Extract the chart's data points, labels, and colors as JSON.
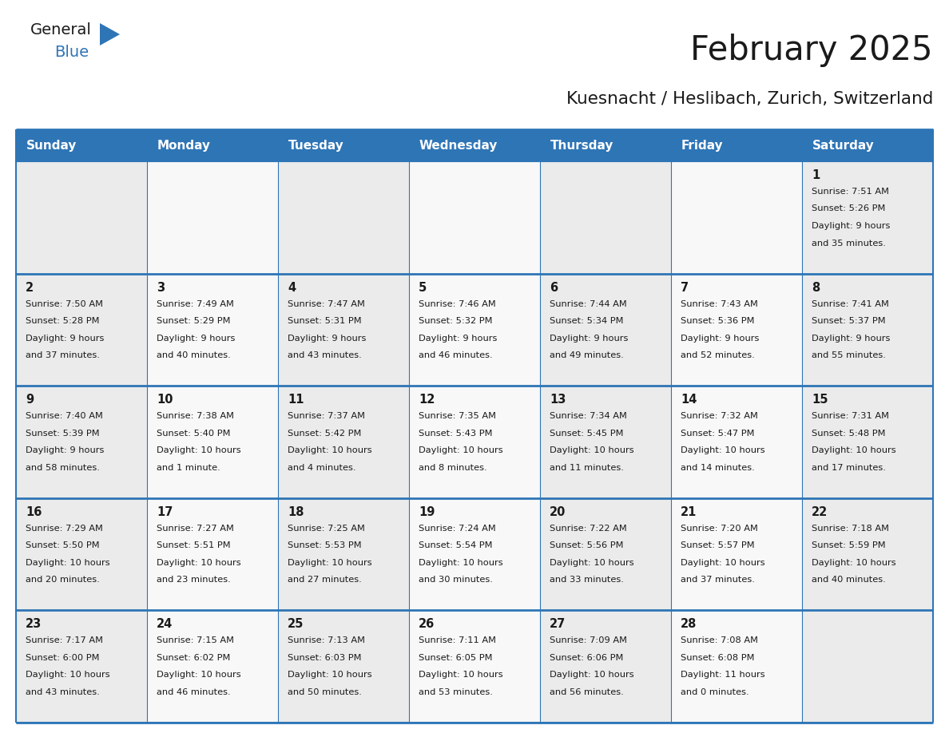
{
  "title": "February 2025",
  "subtitle": "Kuesnacht / Heslibach, Zurich, Switzerland",
  "header_bg_color": "#2E75B6",
  "header_text_color": "#FFFFFF",
  "cell_bg_even": "#EBEBEB",
  "cell_bg_odd": "#F8F8F8",
  "day_number_color": "#1a1a1a",
  "text_color": "#1a1a1a",
  "border_color": "#2E75B6",
  "week_divider_color": "#2E75B6",
  "days_of_week": [
    "Sunday",
    "Monday",
    "Tuesday",
    "Wednesday",
    "Thursday",
    "Friday",
    "Saturday"
  ],
  "weeks": [
    [
      {
        "day": null,
        "info": null
      },
      {
        "day": null,
        "info": null
      },
      {
        "day": null,
        "info": null
      },
      {
        "day": null,
        "info": null
      },
      {
        "day": null,
        "info": null
      },
      {
        "day": null,
        "info": null
      },
      {
        "day": "1",
        "info": "Sunrise: 7:51 AM\nSunset: 5:26 PM\nDaylight: 9 hours\nand 35 minutes."
      }
    ],
    [
      {
        "day": "2",
        "info": "Sunrise: 7:50 AM\nSunset: 5:28 PM\nDaylight: 9 hours\nand 37 minutes."
      },
      {
        "day": "3",
        "info": "Sunrise: 7:49 AM\nSunset: 5:29 PM\nDaylight: 9 hours\nand 40 minutes."
      },
      {
        "day": "4",
        "info": "Sunrise: 7:47 AM\nSunset: 5:31 PM\nDaylight: 9 hours\nand 43 minutes."
      },
      {
        "day": "5",
        "info": "Sunrise: 7:46 AM\nSunset: 5:32 PM\nDaylight: 9 hours\nand 46 minutes."
      },
      {
        "day": "6",
        "info": "Sunrise: 7:44 AM\nSunset: 5:34 PM\nDaylight: 9 hours\nand 49 minutes."
      },
      {
        "day": "7",
        "info": "Sunrise: 7:43 AM\nSunset: 5:36 PM\nDaylight: 9 hours\nand 52 minutes."
      },
      {
        "day": "8",
        "info": "Sunrise: 7:41 AM\nSunset: 5:37 PM\nDaylight: 9 hours\nand 55 minutes."
      }
    ],
    [
      {
        "day": "9",
        "info": "Sunrise: 7:40 AM\nSunset: 5:39 PM\nDaylight: 9 hours\nand 58 minutes."
      },
      {
        "day": "10",
        "info": "Sunrise: 7:38 AM\nSunset: 5:40 PM\nDaylight: 10 hours\nand 1 minute."
      },
      {
        "day": "11",
        "info": "Sunrise: 7:37 AM\nSunset: 5:42 PM\nDaylight: 10 hours\nand 4 minutes."
      },
      {
        "day": "12",
        "info": "Sunrise: 7:35 AM\nSunset: 5:43 PM\nDaylight: 10 hours\nand 8 minutes."
      },
      {
        "day": "13",
        "info": "Sunrise: 7:34 AM\nSunset: 5:45 PM\nDaylight: 10 hours\nand 11 minutes."
      },
      {
        "day": "14",
        "info": "Sunrise: 7:32 AM\nSunset: 5:47 PM\nDaylight: 10 hours\nand 14 minutes."
      },
      {
        "day": "15",
        "info": "Sunrise: 7:31 AM\nSunset: 5:48 PM\nDaylight: 10 hours\nand 17 minutes."
      }
    ],
    [
      {
        "day": "16",
        "info": "Sunrise: 7:29 AM\nSunset: 5:50 PM\nDaylight: 10 hours\nand 20 minutes."
      },
      {
        "day": "17",
        "info": "Sunrise: 7:27 AM\nSunset: 5:51 PM\nDaylight: 10 hours\nand 23 minutes."
      },
      {
        "day": "18",
        "info": "Sunrise: 7:25 AM\nSunset: 5:53 PM\nDaylight: 10 hours\nand 27 minutes."
      },
      {
        "day": "19",
        "info": "Sunrise: 7:24 AM\nSunset: 5:54 PM\nDaylight: 10 hours\nand 30 minutes."
      },
      {
        "day": "20",
        "info": "Sunrise: 7:22 AM\nSunset: 5:56 PM\nDaylight: 10 hours\nand 33 minutes."
      },
      {
        "day": "21",
        "info": "Sunrise: 7:20 AM\nSunset: 5:57 PM\nDaylight: 10 hours\nand 37 minutes."
      },
      {
        "day": "22",
        "info": "Sunrise: 7:18 AM\nSunset: 5:59 PM\nDaylight: 10 hours\nand 40 minutes."
      }
    ],
    [
      {
        "day": "23",
        "info": "Sunrise: 7:17 AM\nSunset: 6:00 PM\nDaylight: 10 hours\nand 43 minutes."
      },
      {
        "day": "24",
        "info": "Sunrise: 7:15 AM\nSunset: 6:02 PM\nDaylight: 10 hours\nand 46 minutes."
      },
      {
        "day": "25",
        "info": "Sunrise: 7:13 AM\nSunset: 6:03 PM\nDaylight: 10 hours\nand 50 minutes."
      },
      {
        "day": "26",
        "info": "Sunrise: 7:11 AM\nSunset: 6:05 PM\nDaylight: 10 hours\nand 53 minutes."
      },
      {
        "day": "27",
        "info": "Sunrise: 7:09 AM\nSunset: 6:06 PM\nDaylight: 10 hours\nand 56 minutes."
      },
      {
        "day": "28",
        "info": "Sunrise: 7:08 AM\nSunset: 6:08 PM\nDaylight: 11 hours\nand 0 minutes."
      },
      {
        "day": null,
        "info": null
      }
    ]
  ]
}
